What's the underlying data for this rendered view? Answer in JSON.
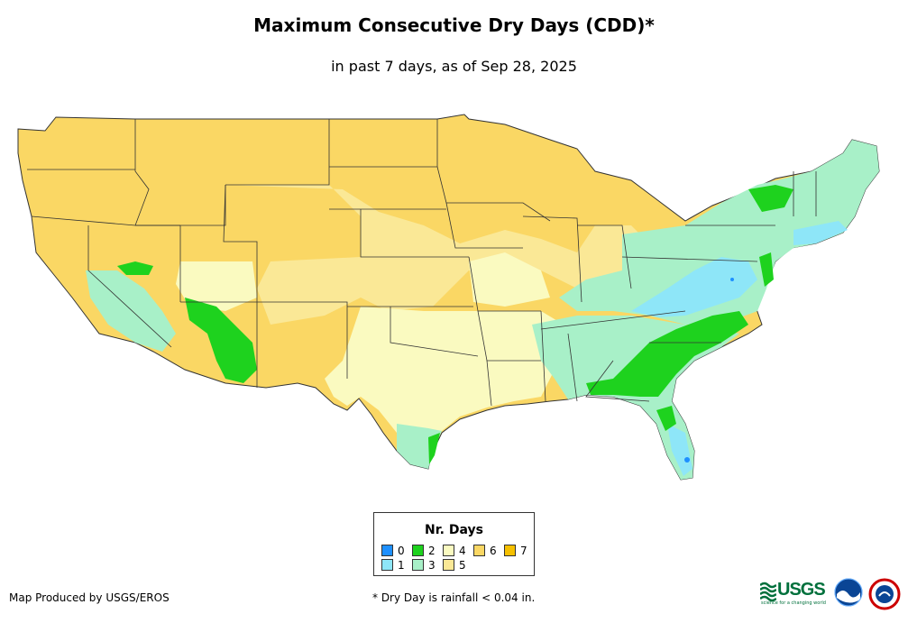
{
  "header": {
    "title": "Maximum Consecutive Dry Days (CDD)*",
    "subtitle": "in past 7 days, as of Sep 28, 2025"
  },
  "colors": {
    "0": "#1e90ff",
    "1": "#8ee6f8",
    "2": "#1ed21e",
    "3": "#a8f0c8",
    "4": "#fafac0",
    "5": "#fae896",
    "6": "#fad764",
    "7": "#f6c000",
    "border": "#333333"
  },
  "legend": {
    "title": "Nr. Days",
    "items": [
      {
        "label": "0",
        "color": "#1e90ff"
      },
      {
        "label": "1",
        "color": "#8ee6f8"
      },
      {
        "label": "2",
        "color": "#1ed21e"
      },
      {
        "label": "3",
        "color": "#a8f0c8"
      },
      {
        "label": "4",
        "color": "#fafac0"
      },
      {
        "label": "5",
        "color": "#fae896"
      },
      {
        "label": "6",
        "color": "#fad764"
      },
      {
        "label": "7",
        "color": "#f6c000"
      }
    ]
  },
  "footer": {
    "credit": "Map Produced by USGS/EROS",
    "footnote": "* Dry Day is rainfall < 0.04 in.",
    "usgs_logo": "USGS",
    "usgs_tagline": "science for a changing world",
    "logos": [
      "usgs-logo",
      "noaa-logo",
      "nws-logo"
    ]
  }
}
